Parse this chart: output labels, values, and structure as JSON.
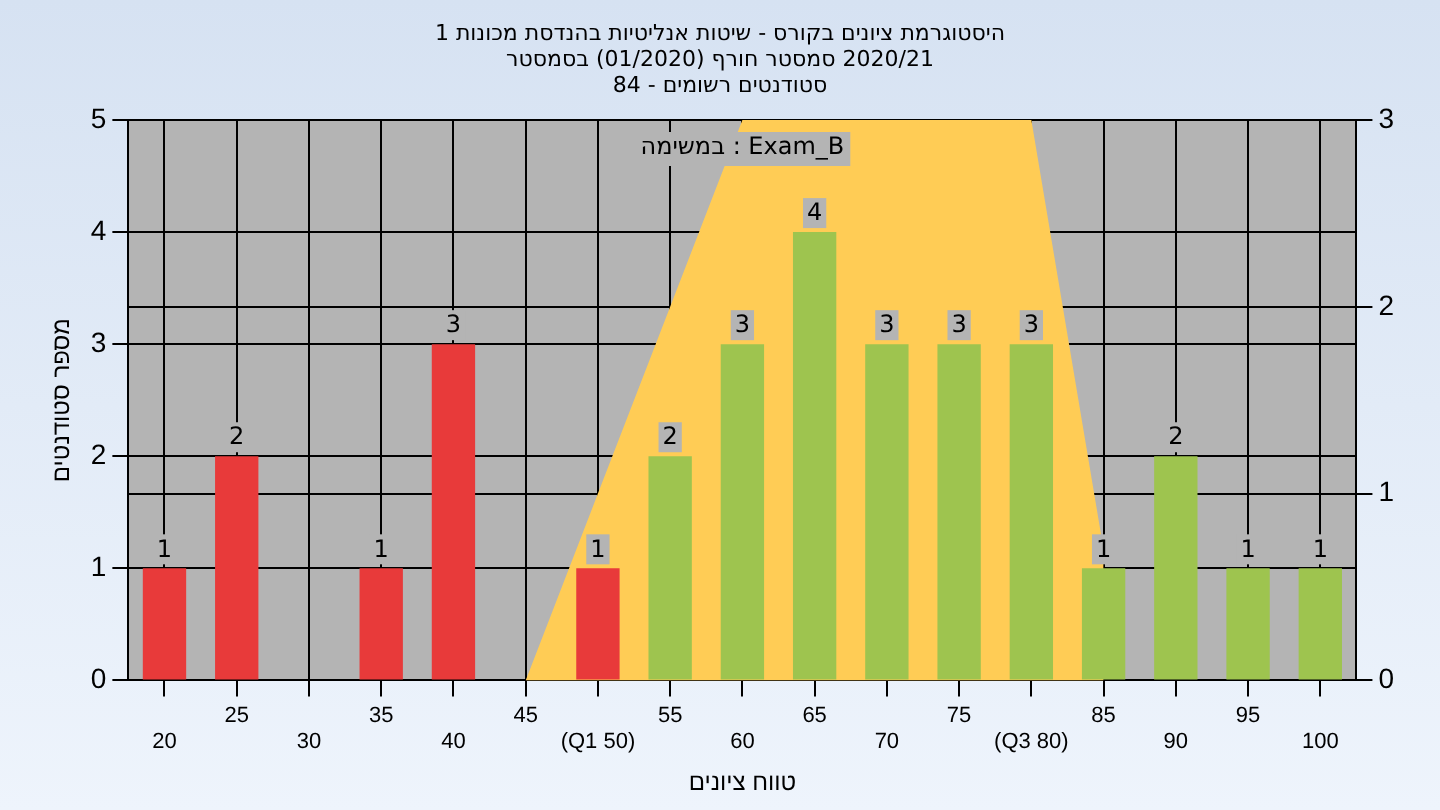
{
  "chart_data": {
    "type": "bar",
    "title": "היסטוגרמת ציונים בקורס - שיטות אנליטיות בהנדסת מכונות 1",
    "subtitle": "2020/21 סמסטר חורף (01/2020) בסמסטר\nסטודנטים רשומים - 84",
    "xlabel": "טווח ציונים",
    "ylabel": "מספר סטודנטים",
    "annotations": [
      "Exam_B : במשימה"
    ],
    "categories": [
      "20",
      "25",
      "30",
      "35",
      "40",
      "45",
      "(Q1 50)",
      "55",
      "60",
      "65",
      "70",
      "75",
      "(Q3 80)",
      "85",
      "90",
      "95",
      "100"
    ],
    "series": [
      {
        "values": [
          1,
          2,
          0,
          1,
          3,
          0,
          1,
          2,
          3,
          4,
          3,
          3,
          3,
          1,
          2,
          1,
          1
        ],
        "value_labels": [
          "1",
          "2",
          null,
          "1",
          "3",
          null,
          "1",
          "2",
          "3",
          "4",
          "3",
          "3",
          "3",
          "1",
          "2",
          "1",
          "1"
        ],
        "colors": [
          "#e83a3a",
          "#e83a3a",
          "#e83a3a",
          "#e83a3a",
          "#e83a3a",
          "#e83a3a",
          "#e83a3a",
          "#9ec44f",
          "#9ec44f",
          "#9ec44f",
          "#9ec44f",
          "#9ec44f",
          "#9ec44f",
          "#9ec44f",
          "#9ec44f",
          "#9ec44f",
          "#9ec44f"
        ]
      },
      {
        "type": "area",
        "axis": "y2",
        "color": "#ffcc55",
        "values": [
          null,
          null,
          null,
          null,
          null,
          0,
          1,
          2,
          3,
          3,
          3,
          3,
          3,
          0.7,
          null,
          null,
          null
        ]
      }
    ],
    "ylim": [
      0,
      5
    ],
    "yticks": [
      0,
      1,
      2,
      3,
      4,
      5
    ],
    "y2lim": [
      0,
      3
    ],
    "y2ticks": [
      0,
      1,
      2,
      3
    ],
    "grid": true,
    "legend": false
  }
}
